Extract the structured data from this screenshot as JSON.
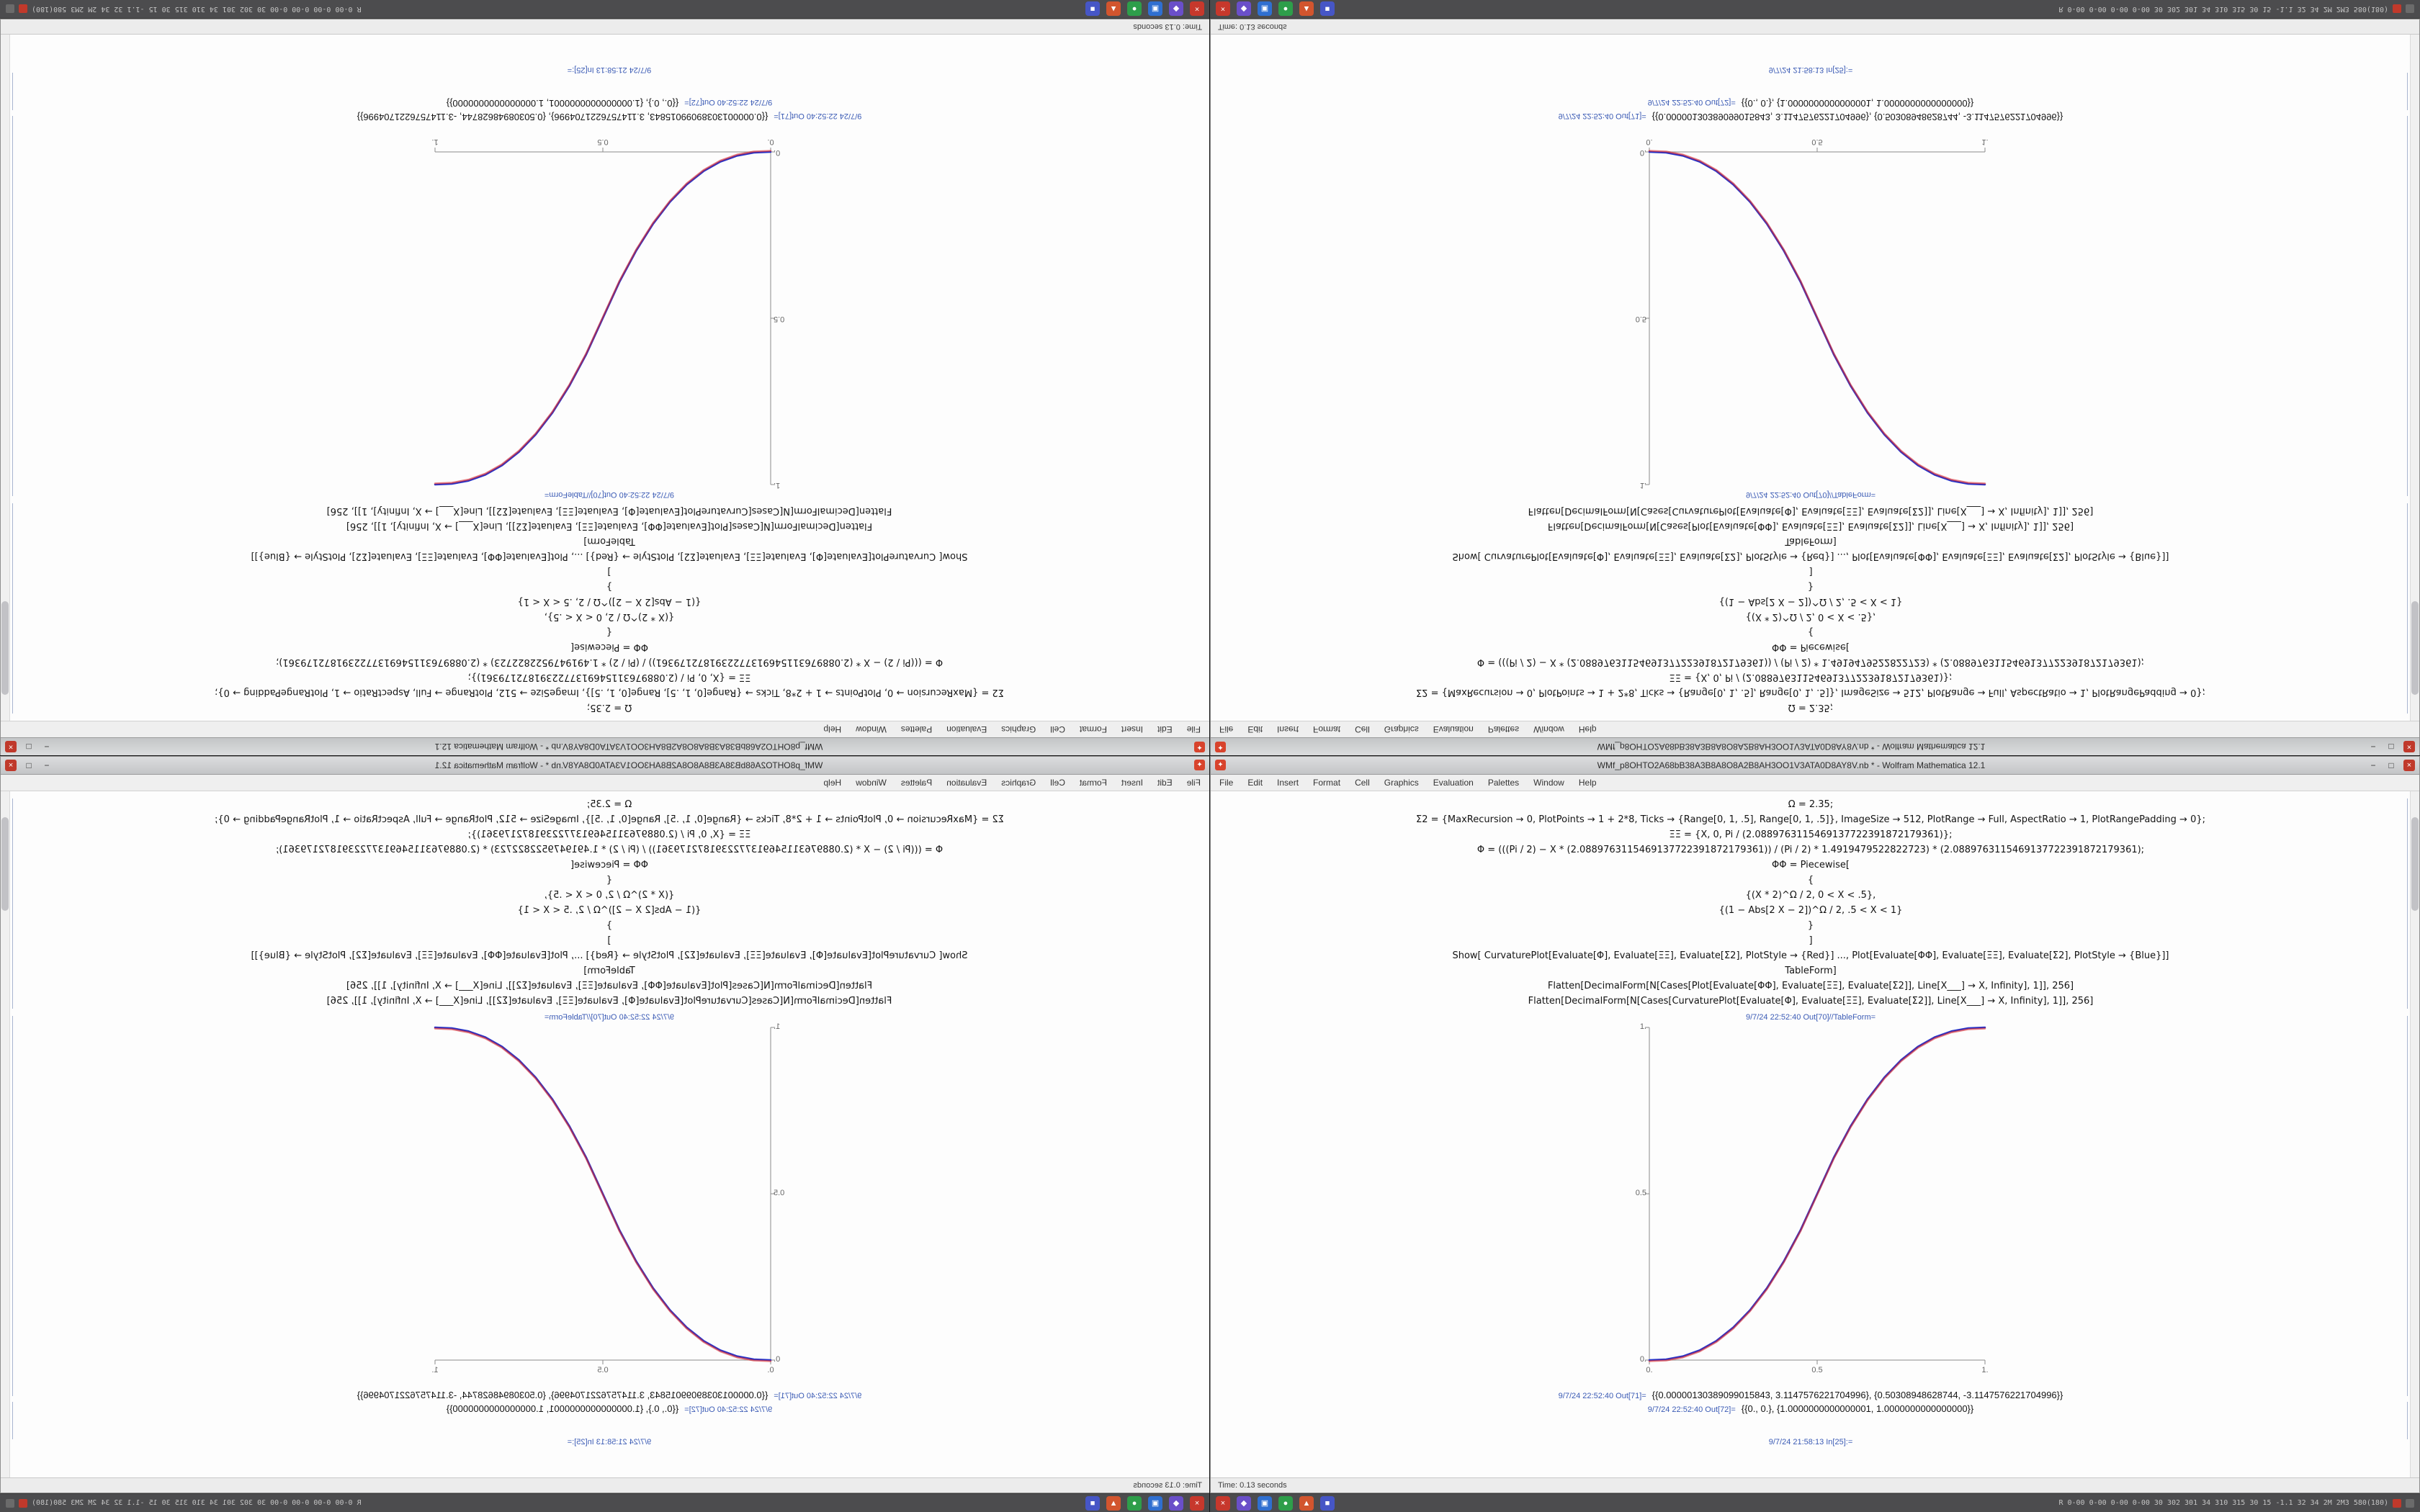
{
  "window": {
    "title": "WMf_p8OHTO2A68bB38A3B8A8O8A2B8AH3OO1V3ATA0D8AY8V.nb * - Wolfram Mathematica 12.1",
    "buttons": {
      "minimize": "−",
      "maximize": "□",
      "close": "×"
    },
    "menu": [
      "File",
      "Edit",
      "Insert",
      "Format",
      "Cell",
      "Graphics",
      "Evaluation",
      "Palettes",
      "Window",
      "Help"
    ],
    "notebook": {
      "code": [
        "Ω = 2.35;",
        "Σ2 = {MaxRecursion → 0, PlotPoints → 1 + 2*8, Ticks → {Range[0, 1, .5], Range[0, 1, .5]}, ImageSize → 512, PlotRange → Full, AspectRatio → 1, PlotRangePadding → 0};",
        "ΞΞ = {X, 0, Pi / (2.0889763115469137722391872179361)};",
        "Φ = (((Pi / 2) − X * (2.0889763115469137722391872179361)) / (Pi / 2) * 1.4919479522822723) * (2.0889763115469137722391872179361);",
        "ΦΦ = Piecewise[",
        "{",
        "{(X * 2)^Ω / 2, 0 < X < .5},",
        "{(1 − Abs[2 X − 2])^Ω / 2, .5 < X < 1}",
        "}",
        "]",
        "Show[ CurvaturePlot[Evaluate[Φ], Evaluate[ΞΞ], Evaluate[Σ2], PlotStyle → {Red}] ..., Plot[Evaluate[ΦΦ], Evaluate[ΞΞ], Evaluate[Σ2], PlotStyle → {Blue}]]",
        "TableForm]",
        "Flatten[DecimalForm[N[Cases[Plot[Evaluate[ΦΦ], Evaluate[ΞΞ], Evaluate[Σ2]], Line[X___] → X, Infinity], 1]], 256]",
        "Flatten[DecimalForm[N[Cases[CurvaturePlot[Evaluate[Φ], Evaluate[ΞΞ], Evaluate[Σ2]], Line[X___] → X, Infinity], 1]], 256]"
      ],
      "out_tableform_label": "9/7/24 22:52:40 Out[70]//TableForm=",
      "outputs": [
        {
          "label": "9/7/24 22:52:40 Out[71]=",
          "value": "{{0.00000130389099015843, 3.1147576221704996}, {0.50308948628744, -3.1147576221704996}}"
        },
        {
          "label": "9/7/24 22:52:40 Out[72]=",
          "value": "{{0., 0.}, {1.0000000000000001, 1.0000000000000000}}"
        }
      ],
      "in_label": "9/7/24 21:58:13 In[25]:="
    },
    "status_left": "Time: 0.13 seconds"
  },
  "chart_data": {
    "type": "line",
    "title": "",
    "xlabel": "",
    "ylabel": "",
    "xlim": [
      0,
      1
    ],
    "ylim": [
      0,
      1
    ],
    "xticks": [
      "0.",
      "0.5",
      "1."
    ],
    "yticks": [
      "1.",
      "0.5",
      "0."
    ],
    "grid": false,
    "legend": "none",
    "x": [
      0,
      0.05,
      0.1,
      0.15,
      0.2,
      0.25,
      0.3,
      0.35,
      0.4,
      0.45,
      0.5,
      0.55,
      0.6,
      0.65,
      0.7,
      0.75,
      0.8,
      0.85,
      0.9,
      0.95,
      1
    ],
    "series": [
      {
        "name": "Plot (Blue)",
        "color": "#2233cc",
        "values": [
          0,
          0.0022,
          0.0114,
          0.0295,
          0.058,
          0.098,
          0.1505,
          0.216,
          0.296,
          0.39,
          0.5,
          0.61,
          0.704,
          0.784,
          0.8495,
          0.902,
          0.942,
          0.9705,
          0.9886,
          0.9978,
          1
        ]
      },
      {
        "name": "CurvaturePlot (Red)",
        "color": "#d8262b",
        "values": [
          0,
          0.0022,
          0.0114,
          0.0295,
          0.058,
          0.098,
          0.1505,
          0.216,
          0.296,
          0.39,
          0.5,
          0.61,
          0.704,
          0.784,
          0.8495,
          0.902,
          0.942,
          0.9705,
          0.9886,
          0.9978,
          1
        ]
      }
    ]
  },
  "taskbar": {
    "icons": [
      {
        "label": "app-red",
        "glyph": "×",
        "color": "#c7382c"
      },
      {
        "label": "app-violet",
        "glyph": "◆",
        "color": "#6a4fc9"
      },
      {
        "label": "app-blue",
        "glyph": "▣",
        "color": "#2f6fd0"
      },
      {
        "label": "app-green",
        "glyph": "●",
        "color": "#2e9e4a"
      },
      {
        "label": "app-orange",
        "glyph": "▲",
        "color": "#d2552e"
      },
      {
        "label": "app-indigo",
        "glyph": "■",
        "color": "#4656c6"
      }
    ],
    "status_text": "R 0-00 0-00 0-00 0-00 30 302 301 34 310 315 30 15 -1.1 32 34 2M 2M3 580(180)"
  }
}
